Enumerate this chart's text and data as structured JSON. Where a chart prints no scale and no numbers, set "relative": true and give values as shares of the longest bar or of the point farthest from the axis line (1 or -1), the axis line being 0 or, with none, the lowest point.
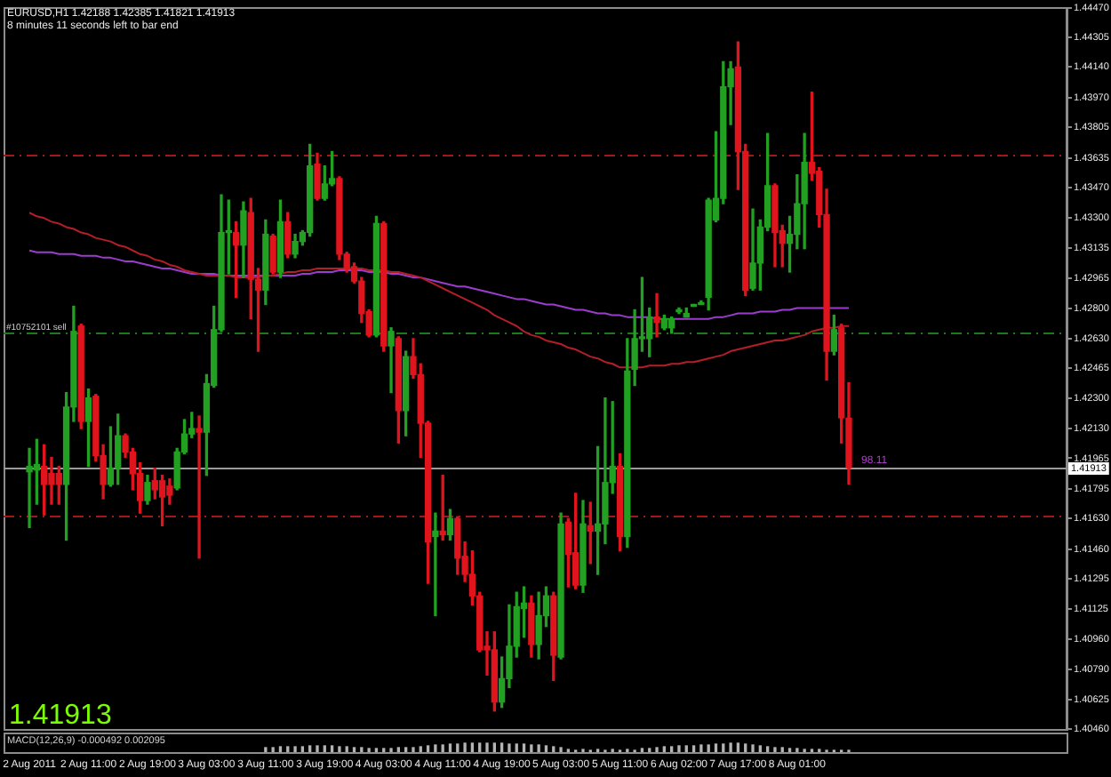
{
  "chart_data": [
    {
      "type": "candlestick",
      "title": "EURUSD,H1  1.42188 1.42385 1.41821 1.41913",
      "subtitle": "8 minutes 11 seconds left to bar end",
      "categories": [
        null,
        null,
        null,
        "2 Aug 2011",
        null,
        null,
        null,
        null,
        null,
        null,
        null,
        "2 Aug 11:00",
        null,
        null,
        null,
        null,
        null,
        null,
        null,
        "2 Aug 19:00",
        null,
        null,
        null,
        null,
        null,
        null,
        null,
        "3 Aug 03:00",
        null,
        null,
        null,
        null,
        null,
        null,
        null,
        "3 Aug 11:00",
        null,
        null,
        null,
        null,
        null,
        null,
        null,
        "3 Aug 19:00",
        null,
        null,
        null,
        null,
        null,
        null,
        null,
        "4 Aug 03:00",
        null,
        null,
        null,
        null,
        null,
        null,
        null,
        "4 Aug 11:00",
        null,
        null,
        null,
        null,
        null,
        null,
        null,
        "4 Aug 19:00",
        null,
        null,
        null,
        null,
        null,
        null,
        null,
        "5 Aug 03:00",
        null,
        null,
        null,
        null,
        null,
        null,
        null,
        "5 Aug 11:00",
        null,
        null,
        null,
        null,
        null,
        null,
        null,
        "6 Aug 02:00",
        null,
        null,
        null,
        null,
        null,
        null,
        null,
        "7 Aug 17:00",
        null,
        null,
        null,
        null,
        null,
        null,
        null,
        "8 Aug 01:00",
        null,
        null,
        null,
        null,
        null,
        null,
        null,
        null,
        null,
        null,
        null,
        null,
        null,
        null,
        null,
        null,
        null,
        null,
        null,
        null,
        null,
        null,
        null,
        null,
        null,
        null,
        null,
        null,
        null,
        null,
        null,
        null,
        null,
        null,
        null,
        null
      ],
      "ohlc": [
        null,
        null,
        null,
        [
          1.4189,
          1.4202,
          1.4158,
          1.4192
        ],
        [
          1.419,
          1.4207,
          1.4171,
          1.4193
        ],
        [
          1.4192,
          1.4204,
          1.4165,
          1.4182
        ],
        [
          1.4188,
          1.4197,
          1.4171,
          1.4182
        ],
        [
          1.4188,
          1.4192,
          1.4171,
          1.4182
        ],
        [
          1.4182,
          1.4233,
          1.4151,
          1.4225
        ],
        [
          1.4225,
          1.4281,
          1.4217,
          1.4267
        ],
        [
          1.427,
          1.4271,
          1.4213,
          1.4217
        ],
        [
          1.4217,
          1.4235,
          1.4192,
          1.423
        ],
        [
          1.4231,
          1.4232,
          1.4195,
          1.4198
        ],
        [
          1.4198,
          1.4204,
          1.4174,
          1.4182
        ],
        [
          1.4182,
          1.4214,
          1.4181,
          1.4191
        ],
        [
          1.4191,
          1.4221,
          1.4182,
          1.4209
        ],
        [
          1.4209,
          1.421,
          1.4197,
          1.42
        ],
        [
          1.42,
          1.4202,
          1.4179,
          1.4188
        ],
        [
          1.4188,
          1.4194,
          1.4166,
          1.4173
        ],
        [
          1.4173,
          1.4187,
          1.4171,
          1.4183
        ],
        [
          1.4184,
          1.4191,
          1.4174,
          1.4179
        ],
        [
          1.4184,
          1.4187,
          1.4159,
          1.4175
        ],
        [
          1.4181,
          1.4185,
          1.4171,
          1.4176
        ],
        [
          1.418,
          1.4202,
          1.4179,
          1.42
        ],
        [
          1.42,
          1.4218,
          1.4199,
          1.421
        ],
        [
          1.421,
          1.4222,
          1.4208,
          1.4213
        ],
        [
          1.4213,
          1.422,
          1.4141,
          1.4211
        ],
        [
          1.4211,
          1.4243,
          1.4187,
          1.4238
        ],
        [
          1.4237,
          1.4281,
          1.4236,
          1.4268
        ],
        [
          1.4268,
          1.4343,
          1.4267,
          1.4322
        ],
        [
          1.4322,
          1.434,
          1.4299,
          1.4323
        ],
        [
          1.4322,
          1.4328,
          1.4286,
          1.4315
        ],
        [
          1.4315,
          1.4339,
          1.4297,
          1.4334
        ],
        [
          1.4333,
          1.4341,
          1.4274,
          1.4296
        ],
        [
          1.4296,
          1.4302,
          1.4256,
          1.429
        ],
        [
          1.429,
          1.4329,
          1.4282,
          1.4321
        ],
        [
          1.432,
          1.4321,
          1.4299,
          1.43
        ],
        [
          1.43,
          1.434,
          1.4297,
          1.4328
        ],
        [
          1.4328,
          1.4333,
          1.4308,
          1.431
        ],
        [
          1.431,
          1.4321,
          1.4308,
          1.4317
        ],
        [
          1.4317,
          1.4323,
          1.4315,
          1.4322
        ],
        [
          1.4322,
          1.4371,
          1.432,
          1.4359
        ],
        [
          1.436,
          1.4366,
          1.434,
          1.4341
        ],
        [
          1.4341,
          1.4359,
          1.434,
          1.4349
        ],
        [
          1.4349,
          1.4367,
          1.4348,
          1.4352
        ],
        [
          1.4352,
          1.4353,
          1.4307,
          1.431
        ],
        [
          1.431,
          1.4311,
          1.43,
          1.4302
        ],
        [
          1.4303,
          1.4305,
          1.4294,
          1.4295
        ],
        [
          1.4295,
          1.4297,
          1.4272,
          1.4277
        ],
        [
          1.4278,
          1.4279,
          1.4264,
          1.4265
        ],
        [
          1.4265,
          1.4331,
          1.4264,
          1.4327
        ],
        [
          1.4327,
          1.4328,
          1.4256,
          1.4259
        ],
        [
          1.4259,
          1.4269,
          1.4233,
          1.4267
        ],
        [
          1.4263,
          1.4264,
          1.4205,
          1.4223
        ],
        [
          1.4223,
          1.4256,
          1.4209,
          1.4253
        ],
        [
          1.4253,
          1.4263,
          1.4241,
          1.4243
        ],
        [
          1.4243,
          1.4249,
          1.4197,
          1.4216
        ],
        [
          1.4216,
          1.4217,
          1.4127,
          1.415
        ],
        [
          1.4153,
          1.4166,
          1.4109,
          1.4156
        ],
        [
          1.4156,
          1.4187,
          1.4151,
          1.4154
        ],
        [
          1.4154,
          1.4168,
          1.4151,
          1.4163
        ],
        [
          1.4163,
          1.4164,
          1.4132,
          1.4141
        ],
        [
          1.4142,
          1.415,
          1.4128,
          1.4132
        ],
        [
          1.4132,
          1.4145,
          1.4115,
          1.412
        ],
        [
          1.412,
          1.4122,
          1.4089,
          1.409
        ],
        [
          1.4092,
          1.41,
          1.4076,
          1.409
        ],
        [
          1.409,
          1.41,
          1.4056,
          1.4061
        ],
        [
          1.4061,
          1.4086,
          1.4058,
          1.4074
        ],
        [
          1.4074,
          1.4115,
          1.4069,
          1.4092
        ],
        [
          1.4092,
          1.4122,
          1.4086,
          1.4114
        ],
        [
          1.4113,
          1.4125,
          1.4097,
          1.4116
        ],
        [
          1.4116,
          1.412,
          1.4086,
          1.4093
        ],
        [
          1.4093,
          1.4122,
          1.4085,
          1.4109
        ],
        [
          1.4109,
          1.4125,
          1.4103,
          1.412
        ],
        [
          1.412,
          1.4122,
          1.4073,
          1.4087
        ],
        [
          1.4086,
          1.4166,
          1.4085,
          1.416
        ],
        [
          1.4161,
          1.4163,
          1.4125,
          1.4143
        ],
        [
          1.4144,
          1.4177,
          1.4124,
          1.4126
        ],
        [
          1.4126,
          1.4173,
          1.4122,
          1.416
        ],
        [
          1.4159,
          1.4172,
          1.4138,
          1.4156
        ],
        [
          1.4156,
          1.4203,
          1.4132,
          1.416
        ],
        [
          1.416,
          1.423,
          1.4149,
          1.4183
        ],
        [
          1.4183,
          1.4228,
          1.4177,
          1.4192
        ],
        [
          1.4192,
          1.4199,
          1.4145,
          1.4153
        ],
        [
          1.4153,
          1.4263,
          1.4147,
          1.4245
        ],
        [
          1.4246,
          1.4279,
          1.4237,
          1.4263
        ],
        [
          1.4263,
          1.4297,
          1.4256,
          1.4264
        ],
        [
          1.4263,
          1.428,
          1.4253,
          1.4275
        ],
        [
          1.4275,
          1.4288,
          1.4264,
          1.4272
        ],
        [
          1.4269,
          1.4276,
          1.4268,
          1.4274
        ],
        [
          1.4269,
          1.4275,
          1.4266,
          1.4274
        ],
        [
          1.4278,
          1.428,
          1.4277,
          1.4279
        ],
        [
          1.4275,
          1.428,
          1.4275,
          1.4277
        ],
        [
          1.4281,
          1.4282,
          1.4281,
          1.4282
        ],
        [
          1.4282,
          1.4284,
          1.4282,
          1.4283
        ],
        [
          1.4286,
          1.4341,
          1.4279,
          1.434
        ],
        [
          1.4329,
          1.4378,
          1.4328,
          1.4341
        ],
        [
          1.4341,
          1.4417,
          1.4338,
          1.4403
        ],
        [
          1.4403,
          1.4417,
          1.4382,
          1.4413
        ],
        [
          1.4414,
          1.4428,
          1.4346,
          1.4367
        ],
        [
          1.4367,
          1.4371,
          1.4287,
          1.429
        ],
        [
          1.4291,
          1.4335,
          1.429,
          1.4305
        ],
        [
          1.4305,
          1.4329,
          1.429,
          1.4325
        ],
        [
          1.4325,
          1.4377,
          1.4323,
          1.4348
        ],
        [
          1.4348,
          1.4349,
          1.4303,
          1.4322
        ],
        [
          1.4323,
          1.4326,
          1.4303,
          1.4316
        ],
        [
          1.4316,
          1.4331,
          1.43,
          1.4321
        ],
        [
          1.4321,
          1.4354,
          1.4313,
          1.4338
        ],
        [
          1.4338,
          1.4377,
          1.4313,
          1.4361
        ],
        [
          1.4361,
          1.44,
          1.4351,
          1.4355
        ],
        [
          1.4356,
          1.4358,
          1.4325,
          1.4332
        ],
        [
          1.4332,
          1.4346,
          1.424,
          1.4256
        ],
        [
          1.4256,
          1.4276,
          1.4254,
          1.4268
        ],
        [
          1.4269,
          1.4271,
          1.4205,
          1.4219
        ],
        [
          1.42188,
          1.42385,
          1.41821,
          1.41913
        ],
        null,
        null,
        null,
        null,
        null,
        null,
        null,
        null,
        null,
        null,
        null,
        null,
        null,
        null,
        null,
        null,
        null,
        null,
        null,
        null,
        null,
        null,
        null,
        null,
        null,
        null,
        null,
        null,
        null
      ],
      "colors": [
        null,
        null,
        null,
        "#22a022",
        "#22a022",
        "#e0141c",
        "#e0141c",
        "#e0141c",
        "#22a022",
        "#22a022",
        "#e0141c",
        "#22a022",
        "#e0141c",
        "#e0141c",
        "#22a022",
        "#22a022",
        "#e0141c",
        "#e0141c",
        "#e0141c",
        "#22a022",
        "#e0141c",
        "#e0141c",
        "#e0141c",
        "#22a022",
        "#22a022",
        "#22a022",
        "#e0141c",
        "#22a022",
        "#22a022",
        "#22a022",
        "#22a022",
        "#e0141c",
        "#22a022",
        "#e0141c",
        "#e0141c",
        "#22a022",
        "#e0141c",
        "#22a022",
        "#e0141c",
        "#22a022",
        "#22a022",
        "#22a022",
        "#e0141c",
        "#22a022",
        "#22a022",
        "#e0141c",
        "#e0141c",
        "#e0141c",
        "#e0141c",
        "#e0141c",
        "#22a022",
        "#e0141c",
        "#22a022",
        "#e0141c",
        "#22a022",
        "#e0141c",
        "#e0141c",
        "#e0141c",
        "#22a022",
        "#e0141c",
        "#22a022",
        "#e0141c",
        "#e0141c",
        "#e0141c",
        "#e0141c",
        "#e0141c",
        "#e0141c",
        "#22a022",
        "#22a022",
        "#22a022",
        "#22a022",
        "#e0141c",
        "#22a022",
        "#22a022",
        "#e0141c",
        "#22a022",
        "#e0141c",
        "#e0141c",
        "#22a022",
        "#e0141c",
        "#22a022",
        "#22a022",
        "#22a022",
        "#e0141c",
        "#22a022",
        "#22a022",
        "#22a022",
        "#22a022",
        "#e0141c",
        "#22a022",
        "#22a022",
        "#22a022",
        "#22a022",
        "#22a022",
        "#22a022",
        "#22a022",
        "#22a022",
        "#22a022",
        "#22a022",
        "#e0141c",
        "#e0141c",
        "#22a022",
        "#22a022",
        "#22a022",
        "#e0141c",
        "#e0141c",
        "#22a022",
        "#22a022",
        "#22a022",
        "#e0141c",
        "#e0141c",
        "#e0141c",
        "#22a022",
        "#e0141c",
        "#e0141c",
        null,
        null,
        null,
        null,
        null,
        null,
        null,
        null,
        null,
        null,
        null,
        null,
        null,
        null,
        null,
        null,
        null,
        null,
        null,
        null,
        null,
        null,
        null,
        null,
        null,
        null,
        null,
        null,
        null
      ],
      "series": [
        {
          "type": "line",
          "color": "#b41e28",
          "values": [
            null,
            null,
            null,
            1.4333,
            1.4331,
            1.433,
            1.4328,
            1.4327,
            1.4325,
            1.4324,
            1.4322,
            1.4321,
            1.4319,
            1.4318,
            1.4317,
            1.4315,
            1.4314,
            1.4312,
            1.431,
            1.4309,
            1.4307,
            1.4306,
            1.4304,
            1.4303,
            1.4301,
            1.43,
            1.4299,
            1.4298,
            1.4298,
            1.4298,
            1.4298,
            1.4297,
            1.4297,
            1.4297,
            1.4297,
            1.4298,
            1.4298,
            1.4299,
            1.43,
            1.43,
            1.4301,
            1.4301,
            1.4302,
            1.4302,
            1.4302,
            1.4302,
            1.4302,
            1.4302,
            1.4302,
            1.4301,
            1.4301,
            1.4301,
            1.43,
            1.43,
            1.4299,
            1.4298,
            1.4297,
            1.4295,
            1.4293,
            1.4291,
            1.4289,
            1.4287,
            1.4285,
            1.4283,
            1.4281,
            1.4279,
            1.4276,
            1.4274,
            1.4272,
            1.427,
            1.4267,
            1.4265,
            1.4264,
            1.4262,
            1.4261,
            1.426,
            1.4258,
            1.4257,
            1.4255,
            1.4253,
            1.4252,
            1.425,
            1.4249,
            1.4247,
            1.4247,
            1.4247,
            1.4247,
            1.4248,
            1.4248,
            1.4248,
            1.4249,
            1.4249,
            1.425,
            1.425,
            1.4251,
            1.4252,
            1.4253,
            1.4254,
            1.4256,
            1.4257,
            1.4258,
            1.4259,
            1.426,
            1.4261,
            1.4262,
            1.4262,
            1.4263,
            1.4264,
            1.4265,
            1.4267,
            1.4268,
            1.4269,
            1.4269,
            1.427,
            1.427,
            null,
            null,
            null,
            null,
            null,
            null,
            null,
            null,
            null,
            null,
            null,
            null,
            null,
            null,
            null,
            null,
            null,
            null,
            null,
            null,
            null,
            null,
            null,
            null,
            null,
            null,
            null,
            null,
            null
          ]
        },
        {
          "type": "line",
          "color": "#9b3ccd",
          "values": [
            null,
            null,
            null,
            1.4312,
            1.4311,
            1.4311,
            1.4311,
            1.431,
            1.431,
            1.431,
            1.4309,
            1.4309,
            1.4309,
            1.4308,
            1.4308,
            1.4307,
            1.4306,
            1.4306,
            1.4305,
            1.4304,
            1.4303,
            1.4302,
            1.4302,
            1.4301,
            1.43,
            1.4299,
            1.4299,
            1.4299,
            1.4299,
            1.4298,
            1.4298,
            1.4298,
            1.4298,
            1.4298,
            1.4298,
            1.4298,
            1.4298,
            1.4298,
            1.4298,
            1.4298,
            1.4299,
            1.4299,
            1.43,
            1.43,
            1.43,
            1.4301,
            1.4301,
            1.4301,
            1.4301,
            1.43,
            1.43,
            1.43,
            1.4299,
            1.4299,
            1.4298,
            1.4297,
            1.4297,
            1.4296,
            1.4295,
            1.4294,
            1.4293,
            1.4292,
            1.4292,
            1.4291,
            1.429,
            1.4289,
            1.4288,
            1.4287,
            1.4286,
            1.4285,
            1.4285,
            1.4284,
            1.4283,
            1.4282,
            1.4282,
            1.4281,
            1.428,
            1.4279,
            1.4279,
            1.4278,
            1.4277,
            1.4277,
            1.4276,
            1.4276,
            1.4275,
            1.4275,
            1.4275,
            1.4275,
            1.4274,
            1.4274,
            1.4274,
            1.4274,
            1.4274,
            1.4274,
            1.4274,
            1.4274,
            1.4275,
            1.4275,
            1.4276,
            1.4277,
            1.4277,
            1.4277,
            1.4278,
            1.4278,
            1.4278,
            1.4279,
            1.4279,
            1.428,
            1.428,
            1.428,
            1.428,
            1.428,
            1.428,
            1.428,
            1.428,
            null,
            null,
            null,
            null,
            null,
            null,
            null,
            null,
            null,
            null,
            null,
            null,
            null,
            null,
            null,
            null,
            null,
            null,
            null,
            null,
            null,
            null,
            null,
            null,
            null,
            null,
            null,
            null,
            null
          ]
        }
      ],
      "ylim": [
        1.4046,
        1.4447
      ],
      "yticks": [
        {
          "value": 1.4447,
          "label": "1.44470"
        },
        1.44305,
        {
          "value": 1.4414,
          "label": "1.44140"
        },
        {
          "value": 1.4397,
          "label": "1.43970"
        },
        1.43805,
        1.43635,
        {
          "value": 1.4347,
          "label": "1.43470"
        },
        {
          "value": 1.433,
          "label": "1.43300"
        },
        1.43135,
        1.42965,
        {
          "value": 1.428,
          "label": "1.42800"
        },
        {
          "value": 1.4263,
          "label": "1.42630"
        },
        1.42465,
        {
          "value": 1.423,
          "label": "1.42300"
        },
        {
          "value": 1.4213,
          "label": "1.42130"
        },
        1.41965,
        1.41795,
        {
          "value": 1.4163,
          "label": "1.41630"
        },
        {
          "value": 1.4146,
          "label": "1.41460"
        },
        1.41295,
        1.41125,
        {
          "value": 1.4096,
          "label": "1.40960"
        },
        {
          "value": 1.4079,
          "label": "1.40790"
        },
        1.40625,
        {
          "value": 1.4046,
          "label": "1.40460"
        }
      ],
      "ref_lines": [
        {
          "axis": "y",
          "value": 1.4365,
          "color": "#a01818",
          "line_style": "dashed"
        },
        {
          "axis": "y",
          "value": 1.4266,
          "label": "#10752101 sell",
          "color": "#1c7a1c",
          "line_style": "dashed"
        },
        {
          "axis": "y",
          "value": 1.4165,
          "color": "#a01818",
          "line_style": "dashed"
        },
        {
          "axis": "y",
          "value": 1.41913,
          "label": "1.41913",
          "color": "#9a9a9a",
          "line_style": "solid"
        }
      ],
      "annotations": [
        "1.41913",
        "98.11"
      ]
    },
    {
      "type": "bar",
      "relative": true,
      "color": "#b4b4b4",
      "tick_labels": false,
      "categories": [
        null,
        null,
        null,
        null,
        null,
        null,
        null,
        null,
        null,
        null,
        null,
        null,
        null,
        null,
        null,
        null,
        null,
        null,
        null,
        null,
        null,
        null,
        null,
        null,
        null,
        null,
        null,
        null,
        null,
        null,
        null,
        null,
        null,
        null,
        null,
        null,
        null,
        null,
        null,
        null,
        null,
        null,
        null,
        null,
        null,
        null,
        null,
        null,
        null,
        null,
        null,
        null,
        null,
        null,
        null,
        null,
        null,
        null,
        null,
        null,
        null,
        null,
        null,
        null,
        null,
        null,
        null,
        null,
        null,
        null,
        null,
        null,
        null,
        null,
        null,
        null,
        null,
        null,
        null,
        null,
        null,
        null,
        null,
        null,
        null,
        null,
        null,
        null,
        null,
        null,
        null,
        null,
        null,
        null,
        null,
        null,
        null,
        null,
        null,
        null,
        null,
        null,
        null,
        null,
        null,
        null,
        null,
        null,
        null,
        null,
        null,
        null,
        null,
        null,
        null,
        null,
        null,
        null,
        null,
        null,
        null,
        null,
        null,
        null,
        null,
        null,
        null,
        null,
        null,
        null,
        null,
        null,
        null,
        null,
        null,
        null,
        null,
        null,
        null,
        null,
        null,
        null,
        null,
        null
      ],
      "values": [
        null,
        null,
        null,
        null,
        null,
        null,
        null,
        null,
        null,
        null,
        null,
        null,
        null,
        null,
        null,
        null,
        null,
        null,
        null,
        null,
        null,
        null,
        null,
        null,
        null,
        null,
        null,
        null,
        null,
        null,
        null,
        null,
        null,
        null,
        null,
        0.5,
        0.5,
        0.6,
        0.6,
        0.6,
        0.6,
        0.7,
        0.7,
        0.7,
        0.7,
        0.6,
        0.6,
        0.5,
        0.5,
        0.4,
        0.4,
        0.4,
        0.4,
        0.5,
        0.5,
        0.5,
        0.6,
        0.7,
        0.8,
        0.8,
        0.9,
        0.9,
        1.0,
        1.0,
        1.0,
        1.0,
        1.0,
        1.0,
        0.9,
        0.9,
        0.9,
        0.8,
        0.8,
        0.7,
        0.6,
        0.5,
        0.3,
        0.2,
        0.3,
        0.2,
        0.3,
        0.2,
        0.3,
        0.2,
        0.3,
        0.2,
        0.4,
        0.4,
        0.5,
        0.6,
        0.6,
        0.7,
        0.7,
        0.7,
        0.8,
        0.8,
        0.9,
        0.9,
        1.0,
        1.0,
        0.9,
        0.8,
        0.7,
        0.6,
        0.5,
        0.5,
        0.4,
        0.4,
        0.3,
        0.3,
        0.3,
        0.2,
        0.2,
        0.2,
        0.2,
        null,
        null,
        null,
        null,
        null,
        null,
        null,
        null,
        null,
        null,
        null,
        null,
        null,
        null,
        null,
        null,
        null,
        null,
        null,
        null,
        null,
        null,
        null,
        null,
        null,
        null,
        null,
        null,
        null
      ],
      "annotations": [
        "MACD(12,26,9) -0.000492 0.002095"
      ]
    }
  ]
}
